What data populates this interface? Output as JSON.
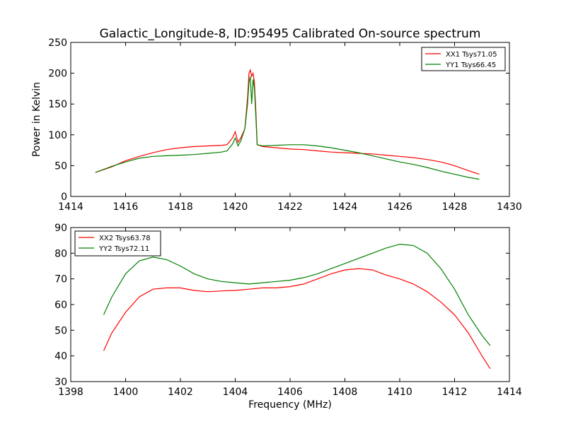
{
  "title": "Galactic_Longitude-8, ID:95495 Calibrated On-source spectrum",
  "chart_data": [
    {
      "type": "line",
      "title": "Galactic_Longitude-8, ID:95495 Calibrated On-source spectrum",
      "xlabel": "",
      "ylabel": "Power in Kelvin",
      "xlim": [
        1414,
        1430
      ],
      "ylim": [
        0,
        250
      ],
      "xticks": [
        1414,
        1416,
        1418,
        1420,
        1422,
        1424,
        1426,
        1428,
        1430
      ],
      "yticks": [
        0,
        50,
        100,
        150,
        200,
        250
      ],
      "grid": false,
      "legend_position": "top-right",
      "series": [
        {
          "name": "XX1 Tsys71.05",
          "color": "#ff0000",
          "x": [
            1414.9,
            1415.5,
            1416.0,
            1416.5,
            1417.0,
            1417.5,
            1418.0,
            1418.5,
            1419.0,
            1419.5,
            1419.7,
            1419.9,
            1420.0,
            1420.1,
            1420.2,
            1420.35,
            1420.45,
            1420.5,
            1420.55,
            1420.6,
            1420.65,
            1420.7,
            1420.75,
            1420.8,
            1421.0,
            1421.5,
            1422.0,
            1422.5,
            1423.0,
            1423.5,
            1424.0,
            1424.5,
            1425.0,
            1425.5,
            1426.0,
            1426.5,
            1427.0,
            1427.5,
            1428.0,
            1428.5,
            1428.9
          ],
          "y": [
            39,
            48,
            58,
            65,
            71,
            76,
            79,
            81,
            82,
            83,
            84,
            95,
            105,
            88,
            95,
            110,
            160,
            200,
            205,
            195,
            200,
            185,
            140,
            84,
            81,
            79,
            77,
            76,
            74,
            72,
            71,
            70,
            69,
            67,
            65,
            63,
            60,
            56,
            50,
            42,
            36
          ]
        },
        {
          "name": "YY1 Tsys66.45",
          "color": "#008000",
          "x": [
            1414.9,
            1415.5,
            1416.0,
            1416.5,
            1417.0,
            1417.5,
            1418.0,
            1418.5,
            1419.0,
            1419.5,
            1419.7,
            1419.9,
            1420.0,
            1420.1,
            1420.2,
            1420.35,
            1420.45,
            1420.5,
            1420.55,
            1420.6,
            1420.65,
            1420.7,
            1420.75,
            1420.8,
            1421.0,
            1421.5,
            1422.0,
            1422.5,
            1423.0,
            1423.5,
            1424.0,
            1424.5,
            1425.0,
            1425.5,
            1426.0,
            1426.5,
            1427.0,
            1427.5,
            1428.0,
            1428.5,
            1428.9
          ],
          "y": [
            39,
            49,
            56,
            62,
            65,
            66,
            67,
            68,
            70,
            72,
            74,
            85,
            95,
            82,
            90,
            110,
            150,
            185,
            195,
            150,
            190,
            175,
            130,
            84,
            82,
            83,
            84,
            84,
            82,
            79,
            75,
            71,
            66,
            61,
            56,
            52,
            47,
            41,
            36,
            31,
            28
          ]
        }
      ]
    },
    {
      "type": "line",
      "title": "",
      "xlabel": "Frequency (MHz)",
      "ylabel": "",
      "xlim": [
        1398,
        1414
      ],
      "ylim": [
        30,
        90
      ],
      "xticks": [
        1398,
        1400,
        1402,
        1404,
        1406,
        1408,
        1410,
        1412,
        1414
      ],
      "yticks": [
        30,
        40,
        50,
        60,
        70,
        80,
        90
      ],
      "grid": false,
      "legend_position": "top-left",
      "series": [
        {
          "name": "XX2 Tsys63.78",
          "color": "#ff0000",
          "x": [
            1399.2,
            1399.5,
            1400.0,
            1400.5,
            1401.0,
            1401.5,
            1402.0,
            1402.5,
            1403.0,
            1403.5,
            1404.0,
            1404.5,
            1405.0,
            1405.5,
            1406.0,
            1406.5,
            1407.0,
            1407.5,
            1408.0,
            1408.5,
            1409.0,
            1409.5,
            1410.0,
            1410.5,
            1411.0,
            1411.5,
            1412.0,
            1412.5,
            1413.0,
            1413.3
          ],
          "y": [
            42,
            49,
            57,
            63,
            66,
            66.5,
            66.5,
            65.5,
            65,
            65.3,
            65.5,
            66,
            66.5,
            66.5,
            67,
            68,
            70,
            72,
            73.5,
            74,
            73.5,
            71.5,
            70,
            68,
            65,
            61,
            56,
            49,
            40,
            35
          ]
        },
        {
          "name": "YY2 Tsys72.11",
          "color": "#008000",
          "x": [
            1399.2,
            1399.5,
            1400.0,
            1400.5,
            1401.0,
            1401.5,
            1402.0,
            1402.5,
            1403.0,
            1403.5,
            1404.0,
            1404.5,
            1405.0,
            1405.5,
            1406.0,
            1406.5,
            1407.0,
            1407.5,
            1408.0,
            1408.5,
            1409.0,
            1409.5,
            1410.0,
            1410.5,
            1411.0,
            1411.5,
            1412.0,
            1412.5,
            1413.0,
            1413.3
          ],
          "y": [
            56,
            63,
            72,
            77,
            78.5,
            77.5,
            75,
            72,
            70,
            69,
            68.5,
            68,
            68.5,
            69,
            69.5,
            70.5,
            72,
            74,
            76,
            78,
            80,
            82,
            83.5,
            83,
            80,
            74,
            66,
            56,
            48,
            44
          ]
        }
      ]
    }
  ]
}
